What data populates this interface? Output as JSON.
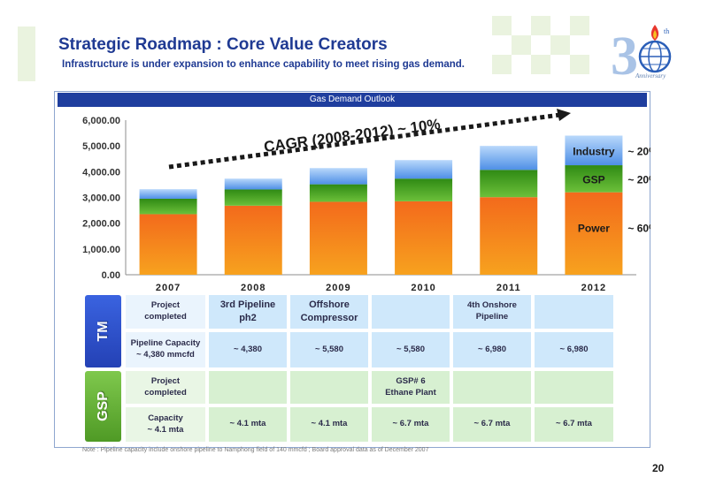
{
  "header": {
    "title": "Strategic Roadmap : Core Value Creators",
    "subtitle": "Infrastructure is under expansion to enhance capability to meet rising gas demand.",
    "logo_text": "Anniversary"
  },
  "panel_title": "Gas Demand Outlook",
  "chart_data": {
    "type": "bar",
    "stacked": true,
    "categories": [
      "2007",
      "2008",
      "2009",
      "2010",
      "2011",
      "2012"
    ],
    "series": [
      {
        "name": "Power",
        "values": [
          2350,
          2680,
          2830,
          2850,
          3010,
          3200
        ],
        "color": "#ee4a15"
      },
      {
        "name": "GSP",
        "values": [
          600,
          630,
          680,
          880,
          1060,
          1050
        ],
        "color": "#3f9a1e"
      },
      {
        "name": "Industry",
        "values": [
          370,
          420,
          630,
          720,
          930,
          1150
        ],
        "color": "#5aa0ee"
      }
    ],
    "ylim": [
      0,
      6000
    ],
    "yticks": [
      "0.00",
      "1,000.00",
      "2,000.00",
      "3,000.00",
      "4,000.00",
      "5,000.00",
      "6,000.00"
    ],
    "annotation": "CAGR (2008-2012) ~ 10%",
    "share_labels": [
      {
        "series": "Industry",
        "share": "~ 20%"
      },
      {
        "series": "GSP",
        "share": "~ 20%"
      },
      {
        "series": "Power",
        "share": "~ 60%"
      }
    ]
  },
  "table": {
    "tm_label": "TM",
    "gsp_label": "GSP",
    "tm_project_label": "Project\ncompleted",
    "tm_capacity_label": "Pipeline Capacity\n~ 4,380 mmcfd",
    "gsp_project_label": "Project\ncompleted",
    "gsp_capacity_label": "Capacity\n~ 4.1 mta",
    "tm_projects": [
      "3rd Pipeline\nph2",
      "Offshore\nCompressor",
      "",
      "4th Onshore\nPipeline",
      ""
    ],
    "tm_capacity": [
      "~ 4,380",
      "~ 5,580",
      "~ 5,580",
      "~ 6,980",
      "~ 6,980"
    ],
    "gsp_projects": [
      "",
      "",
      "GSP# 6\nEthane Plant",
      "",
      ""
    ],
    "gsp_capacity": [
      "~ 4.1 mta",
      "~ 4.1 mta",
      "~ 6.7 mta",
      "~ 6.7 mta",
      "~ 6.7 mta"
    ]
  },
  "note": "Note : Pipeline capacity include onshore pipeline to Namphong field of 140 mmcfd ; Board approval data as of December 2007",
  "page_number": "20"
}
